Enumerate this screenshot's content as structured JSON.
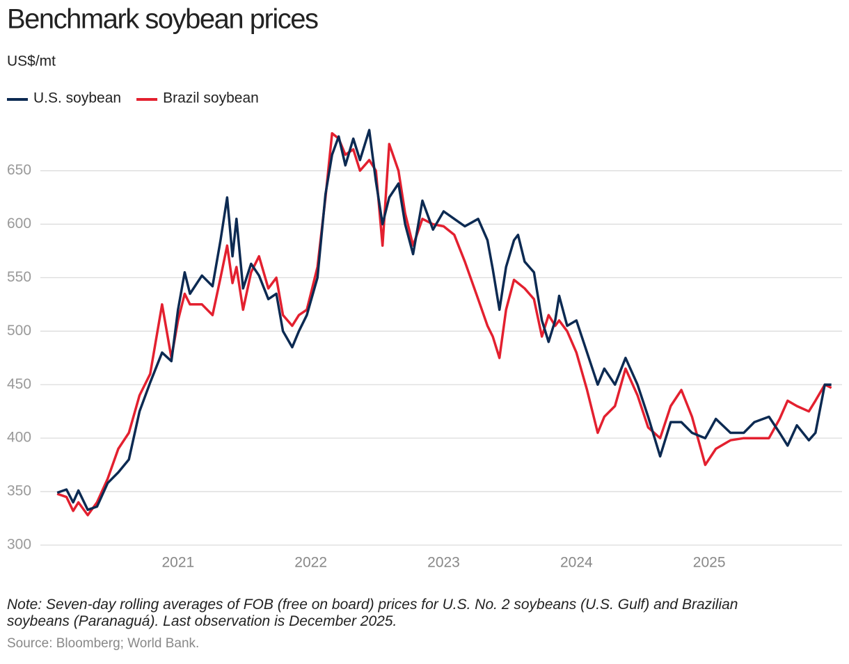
{
  "chart_data": {
    "type": "line",
    "title": "Benchmark soybean prices",
    "subtitle": "US$/mt",
    "note": "Note: Seven-day rolling averages of FOB (free on board) prices for U.S. No. 2 soybeans (U.S. Gulf) and Brazilian soybeans (Paranaguá). Last observation is December 2025.",
    "source": "Source: Bloomberg; World Bank.",
    "x": [
      2020.09,
      2020.16,
      2020.21,
      2020.25,
      2020.32,
      2020.39,
      2020.47,
      2020.55,
      2020.63,
      2020.71,
      2020.79,
      2020.88,
      2020.95,
      2021.0,
      2021.05,
      2021.09,
      2021.18,
      2021.26,
      2021.32,
      2021.37,
      2021.41,
      2021.44,
      2021.49,
      2021.55,
      2021.61,
      2021.68,
      2021.74,
      2021.79,
      2021.86,
      2021.91,
      2021.97,
      2022.05,
      2022.11,
      2022.16,
      2022.21,
      2022.26,
      2022.32,
      2022.37,
      2022.44,
      2022.49,
      2022.54,
      2022.59,
      2022.66,
      2022.71,
      2022.77,
      2022.84,
      2022.92,
      2023.0,
      2023.08,
      2023.16,
      2023.26,
      2023.33,
      2023.37,
      2023.42,
      2023.47,
      2023.53,
      2023.56,
      2023.61,
      2023.68,
      2023.74,
      2023.79,
      2023.84,
      2023.87,
      2023.93,
      2024.0,
      2024.08,
      2024.16,
      2024.21,
      2024.29,
      2024.37,
      2024.46,
      2024.54,
      2024.63,
      2024.71,
      2024.79,
      2024.87,
      2024.97,
      2025.05,
      2025.16,
      2025.26,
      2025.34,
      2025.45,
      2025.53,
      2025.59,
      2025.66,
      2025.75,
      2025.8,
      2025.87,
      2025.92
    ],
    "series": [
      {
        "name": "U.S. soybean",
        "color": "#0c2a52",
        "values": [
          349,
          352,
          340,
          351,
          333,
          336,
          358,
          368,
          380,
          425,
          452,
          480,
          472,
          520,
          555,
          535,
          552,
          542,
          585,
          625,
          570,
          605,
          540,
          563,
          552,
          530,
          535,
          500,
          485,
          500,
          515,
          550,
          628,
          665,
          682,
          655,
          680,
          660,
          688,
          640,
          600,
          625,
          638,
          600,
          572,
          622,
          595,
          612,
          605,
          598,
          605,
          585,
          558,
          520,
          560,
          585,
          590,
          565,
          555,
          510,
          490,
          510,
          533,
          505,
          510,
          480,
          450,
          465,
          450,
          475,
          450,
          420,
          383,
          415,
          415,
          405,
          400,
          418,
          405,
          405,
          415,
          420,
          405,
          393,
          412,
          398,
          405,
          450,
          450
        ]
      },
      {
        "name": "Brazil soybean",
        "color": "#e3202f",
        "values": [
          348,
          345,
          332,
          340,
          328,
          340,
          362,
          390,
          405,
          440,
          460,
          525,
          475,
          510,
          535,
          525,
          525,
          515,
          550,
          580,
          545,
          560,
          520,
          555,
          570,
          540,
          550,
          515,
          505,
          515,
          520,
          560,
          625,
          685,
          680,
          665,
          670,
          650,
          660,
          650,
          580,
          675,
          650,
          610,
          580,
          605,
          600,
          598,
          590,
          565,
          530,
          505,
          495,
          475,
          520,
          548,
          545,
          540,
          530,
          495,
          515,
          505,
          510,
          500,
          480,
          445,
          405,
          420,
          430,
          465,
          440,
          410,
          400,
          430,
          445,
          420,
          375,
          390,
          398,
          400,
          400,
          400,
          418,
          435,
          430,
          425,
          435,
          450,
          447
        ]
      }
    ],
    "xlim": [
      2020,
      2026
    ],
    "xticks": [
      2021,
      2022,
      2023,
      2024,
      2025
    ],
    "ylim": [
      300,
      690
    ],
    "yticks": [
      300,
      350,
      400,
      450,
      500,
      550,
      600,
      650
    ],
    "grid": true
  }
}
